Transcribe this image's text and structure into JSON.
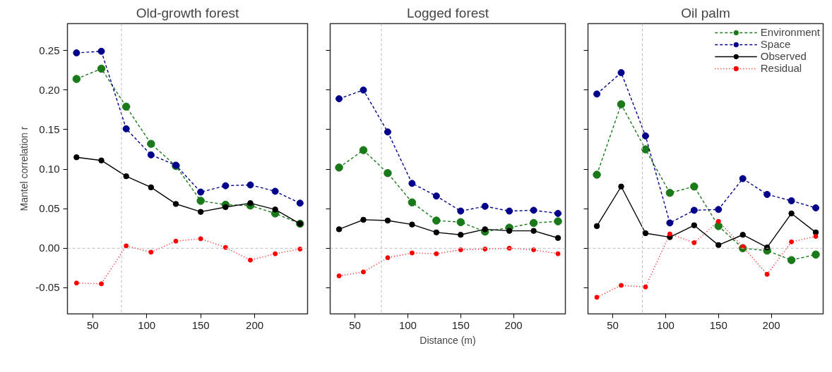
{
  "chart_data": [
    {
      "type": "line",
      "title": "Old-growth forest",
      "ylabel": "Mantel correlation r",
      "marker": "circle",
      "grid": false,
      "legend": false,
      "x": [
        35,
        58,
        81,
        104,
        127,
        150,
        173,
        196,
        219,
        242
      ],
      "xlim": [
        26.6,
        249
      ],
      "xticks": [
        50,
        100,
        150,
        200
      ],
      "ylim": [
        -0.083,
        0.284
      ],
      "yticks": [
        {
          "value": -0.05,
          "label": "-0.05"
        },
        {
          "value": 0,
          "label": "0.00"
        },
        {
          "value": 0.05,
          "label": "0.05"
        },
        {
          "value": 0.1,
          "label": "0.10"
        },
        {
          "value": 0.15,
          "label": "0.15"
        },
        {
          "value": 0.2,
          "label": "0.20"
        },
        {
          "value": 0.25,
          "label": "0.25"
        }
      ],
      "ref_lines": [
        {
          "axis": "x",
          "value": 76.6,
          "color": "#bbbbbb",
          "line_style": "dashed"
        },
        {
          "axis": "y",
          "value": 0,
          "color": "#bbbbbb",
          "line_style": "dashed"
        }
      ],
      "series": [
        {
          "color": "#1a7a1a",
          "line_style": "dashed",
          "values": [
            0.214,
            0.227,
            0.179,
            0.132,
            0.104,
            0.06,
            0.055,
            0.054,
            0.044,
            0.031
          ]
        },
        {
          "color": "#00008b",
          "line_style": "dashed",
          "values": [
            0.247,
            0.249,
            0.151,
            0.118,
            0.105,
            0.071,
            0.079,
            0.08,
            0.072,
            0.057
          ]
        },
        {
          "color": "#000000",
          "line_style": "solid",
          "values": [
            0.115,
            0.111,
            0.091,
            0.077,
            0.056,
            0.046,
            0.052,
            0.057,
            0.049,
            0.031
          ]
        },
        {
          "color": "#ff0000",
          "line_style": "dotted",
          "values": [
            -0.044,
            -0.045,
            0.003,
            -0.005,
            0.009,
            0.012,
            0.001,
            -0.015,
            -0.007,
            -0.001
          ]
        }
      ]
    },
    {
      "type": "line",
      "title": "Logged forest",
      "xlabel": "Distance (m)",
      "marker": "circle",
      "grid": false,
      "legend": false,
      "tick_labels": "x",
      "x": [
        35,
        58,
        81,
        104,
        127,
        150,
        173,
        196,
        219,
        242
      ],
      "xlim": [
        26.6,
        249
      ],
      "xticks": [
        50,
        100,
        150,
        200
      ],
      "ylim": [
        -0.083,
        0.284
      ],
      "yticks": [
        -0.05,
        0,
        0.05,
        0.1,
        0.15,
        0.2,
        0.25
      ],
      "ref_lines": [
        {
          "axis": "x",
          "value": 75,
          "color": "#bbbbbb",
          "line_style": "dashed"
        },
        {
          "axis": "y",
          "value": 0,
          "color": "#bbbbbb",
          "line_style": "dashed"
        }
      ],
      "series": [
        {
          "color": "#1a7a1a",
          "line_style": "dashed",
          "values": [
            0.102,
            0.124,
            0.095,
            0.058,
            0.035,
            0.033,
            0.021,
            0.026,
            0.032,
            0.034
          ]
        },
        {
          "color": "#00008b",
          "line_style": "dashed",
          "values": [
            0.189,
            0.2,
            0.147,
            0.082,
            0.066,
            0.047,
            0.053,
            0.047,
            0.048,
            0.044
          ]
        },
        {
          "color": "#000000",
          "line_style": "solid",
          "values": [
            0.024,
            0.036,
            0.035,
            0.03,
            0.02,
            0.017,
            0.024,
            0.022,
            0.022,
            0.013
          ]
        },
        {
          "color": "#ff0000",
          "line_style": "dotted",
          "values": [
            -0.035,
            -0.03,
            -0.012,
            -0.006,
            -0.007,
            -0.002,
            -0.001,
            0.0,
            -0.002,
            -0.007
          ]
        }
      ]
    },
    {
      "type": "line",
      "title": "Oil palm",
      "marker": "circle",
      "grid": false,
      "legend": "top right",
      "tick_labels": "x",
      "x": [
        35,
        58,
        81,
        104,
        127,
        150,
        173,
        196,
        219,
        242
      ],
      "xlim": [
        26.6,
        249
      ],
      "xticks": [
        50,
        100,
        150,
        200
      ],
      "ylim": [
        -0.083,
        0.284
      ],
      "yticks": [
        -0.05,
        0,
        0.05,
        0.1,
        0.15,
        0.2,
        0.25
      ],
      "ref_lines": [
        {
          "axis": "x",
          "value": 78,
          "color": "#bbbbbb",
          "line_style": "dashed"
        },
        {
          "axis": "y",
          "value": 0,
          "color": "#bbbbbb",
          "line_style": "dashed"
        }
      ],
      "series": [
        {
          "name": "Environment",
          "color": "#1a7a1a",
          "line_style": "dashed",
          "values": [
            0.093,
            0.182,
            0.125,
            0.07,
            0.078,
            0.028,
            0.0,
            -0.003,
            -0.015,
            -0.008
          ]
        },
        {
          "name": "Space",
          "color": "#00008b",
          "line_style": "dashed",
          "values": [
            0.195,
            0.222,
            0.142,
            0.032,
            0.048,
            0.049,
            0.088,
            0.068,
            0.06,
            0.051
          ]
        },
        {
          "name": "Observed",
          "color": "#000000",
          "line_style": "solid",
          "values": [
            0.028,
            0.078,
            0.019,
            0.014,
            0.029,
            0.004,
            0.017,
            0.001,
            0.044,
            0.02
          ]
        },
        {
          "name": "Residual",
          "color": "#ff0000",
          "line_style": "dotted",
          "values": [
            -0.062,
            -0.047,
            -0.049,
            0.018,
            0.007,
            0.034,
            0.002,
            -0.033,
            0.008,
            0.015
          ]
        }
      ]
    }
  ]
}
